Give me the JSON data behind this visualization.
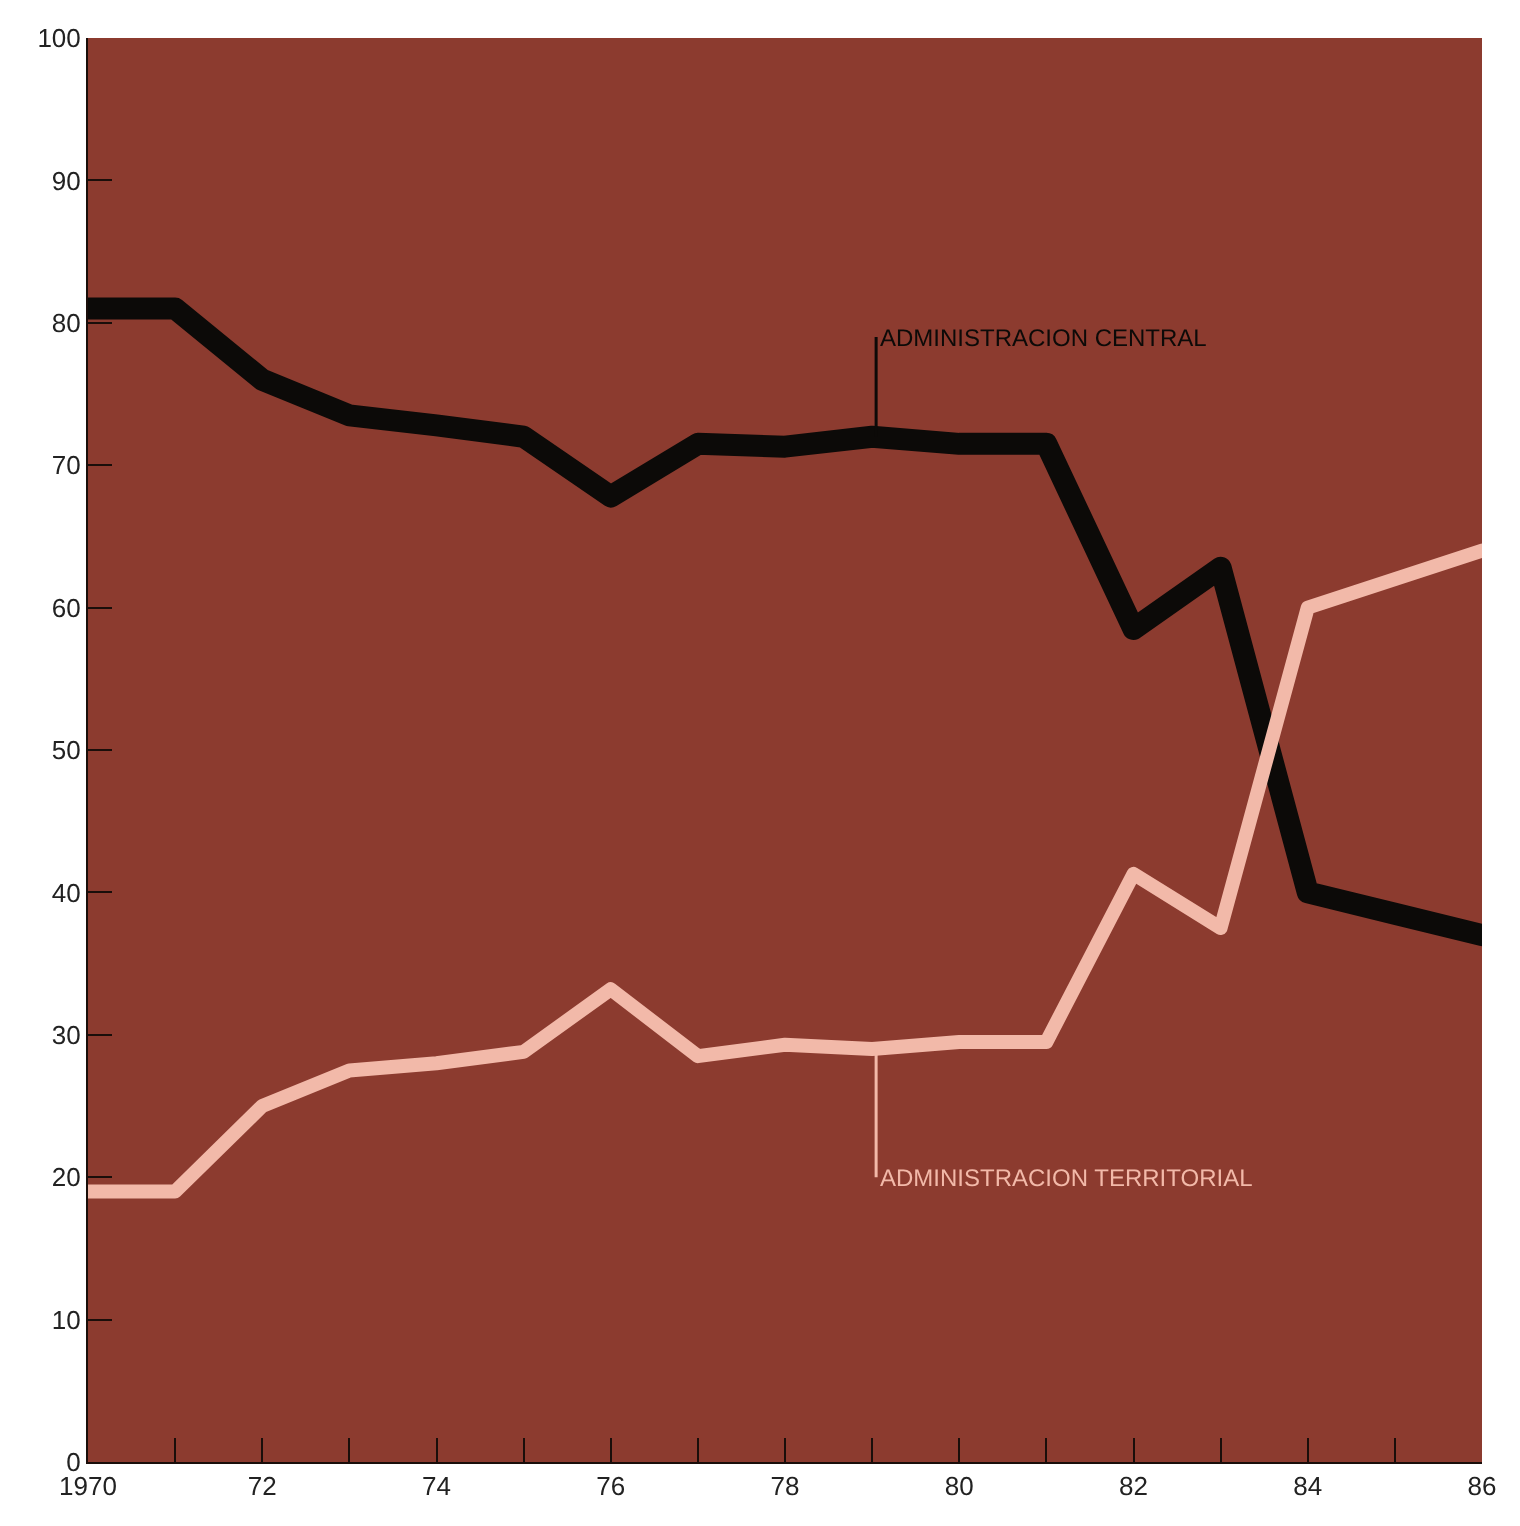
{
  "chart_data": {
    "type": "line",
    "x": [
      1970,
      1971,
      1972,
      1973,
      1974,
      1975,
      1976,
      1977,
      1978,
      1979,
      1980,
      1981,
      1982,
      1983,
      1984,
      1985,
      1986
    ],
    "series": [
      {
        "name": "ADMINISTRACION CENTRAL",
        "color": "#0c0a08",
        "values": [
          81,
          81,
          76,
          73.5,
          72.8,
          72,
          67.8,
          71.5,
          71.3,
          72,
          71.5,
          71.5,
          58.5,
          62.8,
          40,
          38.5,
          37
        ]
      },
      {
        "name": "ADMINISTRACION TERRITORIAL",
        "color": "#f2b9a9",
        "values": [
          19,
          19,
          25,
          27.5,
          28,
          28.8,
          33.2,
          28.5,
          29.3,
          29,
          29.5,
          29.5,
          41.3,
          37.5,
          60,
          62,
          64
        ]
      }
    ],
    "xlim": [
      1970,
      1986
    ],
    "xticks": [
      {
        "value": 1970,
        "label": "1970"
      },
      {
        "value": 1971,
        "label": null
      },
      {
        "value": 1972,
        "label": "72"
      },
      {
        "value": 1973,
        "label": null
      },
      {
        "value": 1974,
        "label": "74"
      },
      {
        "value": 1975,
        "label": null
      },
      {
        "value": 1976,
        "label": "76"
      },
      {
        "value": 1977,
        "label": null
      },
      {
        "value": 1978,
        "label": "78"
      },
      {
        "value": 1979,
        "label": null
      },
      {
        "value": 1980,
        "label": "80"
      },
      {
        "value": 1981,
        "label": null
      },
      {
        "value": 1982,
        "label": "82"
      },
      {
        "value": 1983,
        "label": null
      },
      {
        "value": 1984,
        "label": "84"
      },
      {
        "value": 1985,
        "label": null
      },
      {
        "value": 1986,
        "label": "86"
      }
    ],
    "ylim": [
      0,
      100
    ],
    "yticks": [
      0,
      10,
      20,
      30,
      40,
      50,
      60,
      70,
      80,
      90,
      100
    ],
    "grid": false,
    "legend": false,
    "line_style": "solid"
  }
}
